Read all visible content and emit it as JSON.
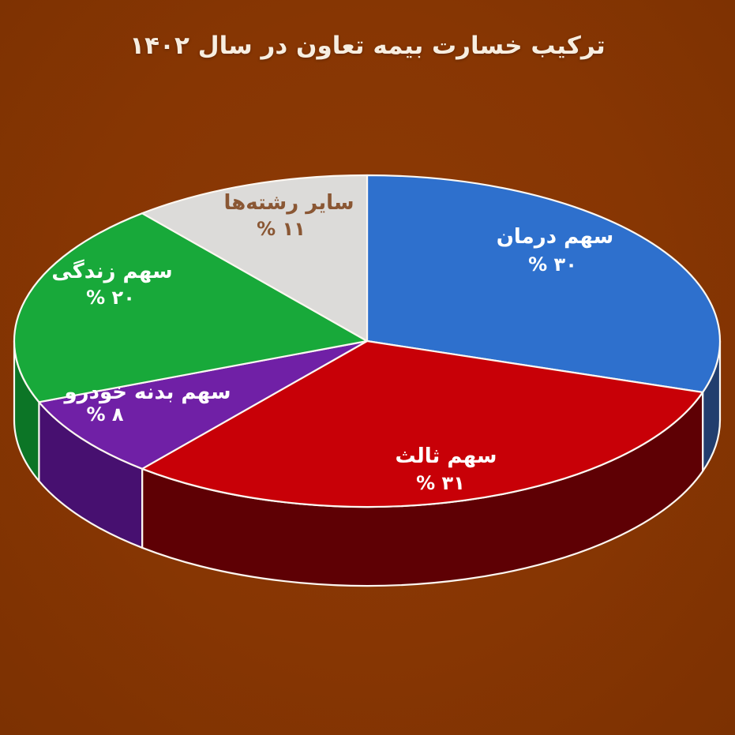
{
  "title": "ترکیب خسارت بیمه تعاون در سال ۱۴۰۲",
  "colors": {
    "background": "#873603",
    "slice_border": "#fcf7f1",
    "title_text": "#f7eee1"
  },
  "chart_data": {
    "type": "pie",
    "effect": "3d",
    "title": "ترکیب خسارت بیمه تعاون در سال ۱۴۰۲",
    "start_angle": "12-oclock, clockwise",
    "total": 100,
    "slices": [
      {
        "key": "health",
        "label": "سهم درمان",
        "percent_label": "% ۳۰",
        "value": 30,
        "color": "#2e70cd",
        "side_color": "#223e6e",
        "text_color": "#ffffff"
      },
      {
        "key": "third-party",
        "label": "سهم ثالث",
        "percent_label": "% ۳۱",
        "value": 31,
        "color": "#c80007",
        "side_color": "#5e0004",
        "text_color": "#ffffff"
      },
      {
        "key": "car-body",
        "label": "سهم بدنه خودرو",
        "percent_label": "% ۸",
        "value": 8,
        "color": "#7020a6",
        "side_color": "#471070",
        "text_color": "#ffffff"
      },
      {
        "key": "life",
        "label": "سهم زندگی",
        "percent_label": "% ۲۰",
        "value": 20,
        "color": "#18a93a",
        "side_color": "#0c7526",
        "text_color": "#ffffff"
      },
      {
        "key": "others",
        "label": "سایر رشته‌ها",
        "percent_label": "% ۱۱",
        "value": 11,
        "color": "#dcdbd9",
        "side_color": "#9b9a98",
        "text_color": "#8a5734"
      }
    ]
  }
}
